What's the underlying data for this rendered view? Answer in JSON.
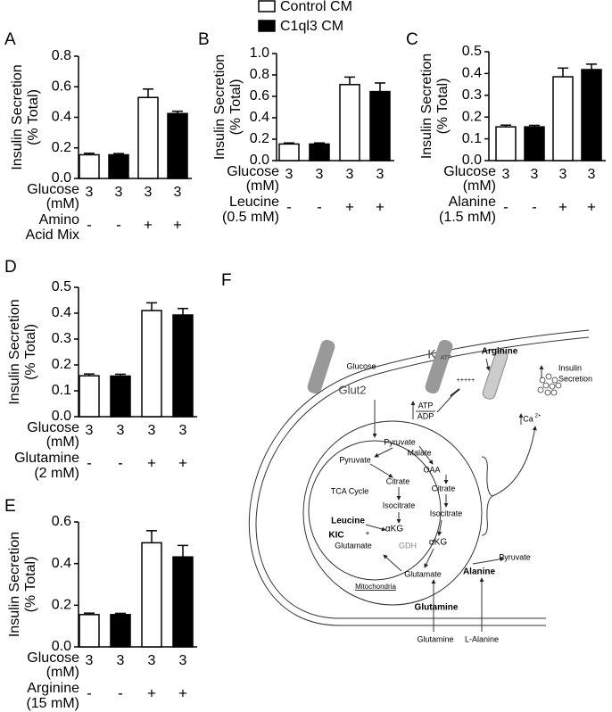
{
  "chart_data": [
    {
      "type": "bar",
      "label": "A",
      "ylabel": [
        "Insulin Secretion",
        "(% Total)"
      ],
      "ylim": [
        0,
        0.8
      ],
      "yticks": [
        {
          "value": 0,
          "label": "0.0"
        },
        0.2,
        0.4,
        0.6,
        0.8
      ],
      "values": [
        0.155,
        0.155,
        0.53,
        0.425
      ],
      "errors": [
        0.01,
        0.008,
        0.055,
        0.015
      ],
      "colors": [
        "#ffffff",
        "#000000",
        "#ffffff",
        "#000000"
      ],
      "glucose_label": [
        "Glucose",
        "(mM)"
      ],
      "glucose": [
        "3",
        "3",
        "3",
        "3"
      ],
      "treatment_label": [
        "Amino",
        "Acid Mix"
      ],
      "treatment": [
        "-",
        "-",
        "+",
        "+"
      ]
    },
    {
      "type": "bar",
      "label": "B",
      "ylabel": [
        "Insulin Secretion",
        "(% Total)"
      ],
      "ylim": [
        0,
        1.0
      ],
      "yticks": [
        {
          "value": 0,
          "label": "0.0"
        },
        0.2,
        0.4,
        0.6,
        0.8,
        {
          "value": 1,
          "label": "1.0"
        }
      ],
      "values": [
        0.155,
        0.155,
        0.71,
        0.645
      ],
      "errors": [
        0.01,
        0.01,
        0.07,
        0.08
      ],
      "colors": [
        "#ffffff",
        "#000000",
        "#ffffff",
        "#000000"
      ],
      "glucose_label": [
        "Glucose",
        "(mM)"
      ],
      "glucose": [
        "3",
        "3",
        "3",
        "3"
      ],
      "treatment_label": [
        "Leucine",
        "(0.5 mM)"
      ],
      "treatment": [
        "-",
        "-",
        "+",
        "+"
      ]
    },
    {
      "type": "bar",
      "label": "C",
      "ylabel": [
        "Insulin Secretion",
        "(% Total)"
      ],
      "ylim": [
        0,
        0.5
      ],
      "yticks": [
        {
          "value": 0,
          "label": "0.0"
        },
        0.1,
        0.2,
        0.3,
        0.4,
        0.5
      ],
      "values": [
        0.155,
        0.155,
        0.385,
        0.418
      ],
      "errors": [
        0.008,
        0.007,
        0.04,
        0.025
      ],
      "colors": [
        "#ffffff",
        "#000000",
        "#ffffff",
        "#000000"
      ],
      "glucose_label": [
        "Glucose",
        "(mM)"
      ],
      "glucose": [
        "3",
        "3",
        "3",
        "3"
      ],
      "treatment_label": [
        "Alanine",
        "(1.5 mM)"
      ],
      "treatment": [
        "-",
        "-",
        "+",
        "+"
      ]
    },
    {
      "type": "bar",
      "label": "D",
      "ylabel": [
        "Insulin Secretion",
        "(% Total)"
      ],
      "ylim": [
        0,
        0.5
      ],
      "yticks": [
        {
          "value": 0,
          "label": "0.0"
        },
        0.1,
        0.2,
        0.3,
        0.4,
        0.5
      ],
      "values": [
        0.158,
        0.157,
        0.41,
        0.393
      ],
      "errors": [
        0.007,
        0.007,
        0.03,
        0.025
      ],
      "colors": [
        "#ffffff",
        "#000000",
        "#ffffff",
        "#000000"
      ],
      "glucose_label": [
        "Glucose",
        "(mM)"
      ],
      "glucose": [
        "3",
        "3",
        "3",
        "3"
      ],
      "treatment_label": [
        "Glutamine",
        "(2 mM)"
      ],
      "treatment": [
        "-",
        "-",
        "+",
        "+"
      ]
    },
    {
      "type": "bar",
      "label": "E",
      "ylabel": [
        "Insulin Secretion",
        "(% Total)"
      ],
      "ylim": [
        0,
        0.6
      ],
      "yticks": [
        {
          "value": 0,
          "label": "0.0"
        },
        0.2,
        0.4,
        0.6
      ],
      "values": [
        0.155,
        0.155,
        0.5,
        0.432
      ],
      "errors": [
        0.007,
        0.006,
        0.058,
        0.055
      ],
      "colors": [
        "#ffffff",
        "#000000",
        "#ffffff",
        "#000000"
      ],
      "glucose_label": [
        "Glucose",
        "(mM)"
      ],
      "glucose": [
        "3",
        "3",
        "3",
        "3"
      ],
      "treatment_label": [
        "Arginine",
        "(15 mM)"
      ],
      "treatment": [
        "-",
        "-",
        "+",
        "+"
      ]
    }
  ],
  "legend": [
    {
      "name": "Control CM",
      "color": "#ffffff"
    },
    {
      "name": "C1ql3 CM",
      "color": "#000000"
    }
  ],
  "diagram": {
    "label": "F",
    "texts": [
      "Glucose",
      "Glut2",
      "K",
      "ATP",
      "Arginine",
      "+++++",
      "Insulin",
      "Secretion",
      "ATP",
      "ADP",
      "Ca",
      "2+",
      "Pyruvate",
      "Malate",
      "OAA",
      "Pyruvate",
      "Citrate",
      "Citrate",
      "TCA Cycle",
      "Isocitrate",
      "Isocitrate",
      "Leucine",
      "KIC",
      "+",
      "αKG",
      "Glutamate",
      "GDH",
      "αKG",
      "Pyruvate",
      "Alanine",
      "Glutamate",
      "Mitochondria",
      "Glutamine",
      "Glutamine",
      "L-Alanine"
    ]
  }
}
